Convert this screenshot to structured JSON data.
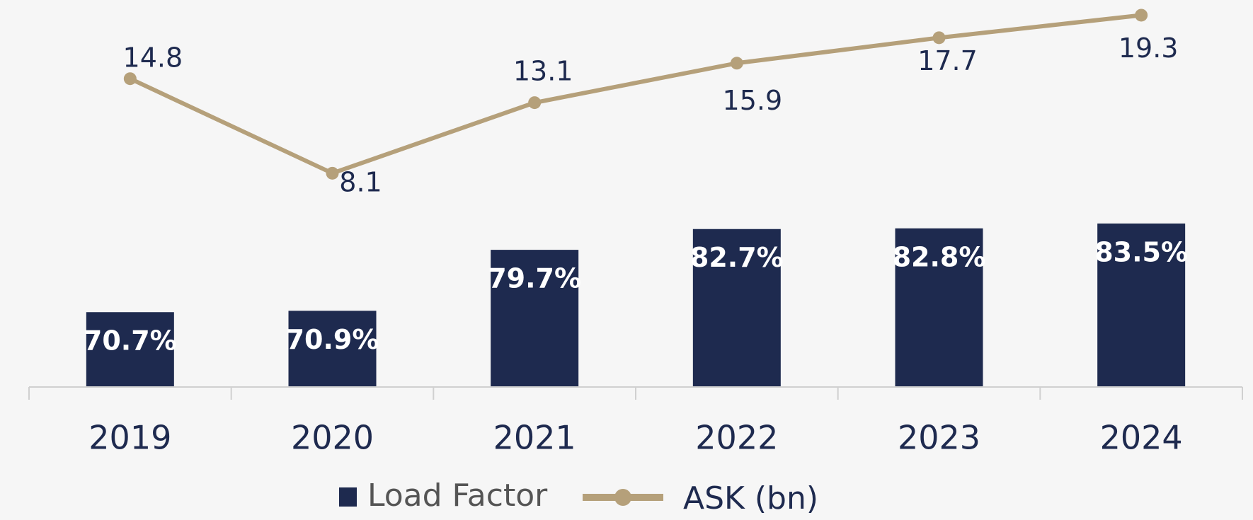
{
  "chart_data": {
    "type": "bar+line",
    "categories": [
      "2019",
      "2020",
      "2021",
      "2022",
      "2023",
      "2024"
    ],
    "series": [
      {
        "name": "Load Factor",
        "type": "bar",
        "color": "#1e2a4f",
        "values": [
          70.7,
          70.9,
          79.7,
          82.7,
          82.8,
          83.5
        ],
        "value_labels": [
          "70.7%",
          "70.9%",
          "79.7%",
          "82.7%",
          "82.8%",
          "83.5%"
        ]
      },
      {
        "name": "ASK (bn)",
        "type": "line",
        "axis": "y2",
        "color": "#b5a07a",
        "values": [
          14.8,
          8.1,
          13.1,
          15.9,
          17.7,
          19.3
        ]
      }
    ],
    "ylim": [
      60,
      115
    ],
    "y2lim": [
      -7,
      20
    ],
    "legend": "bottom"
  }
}
